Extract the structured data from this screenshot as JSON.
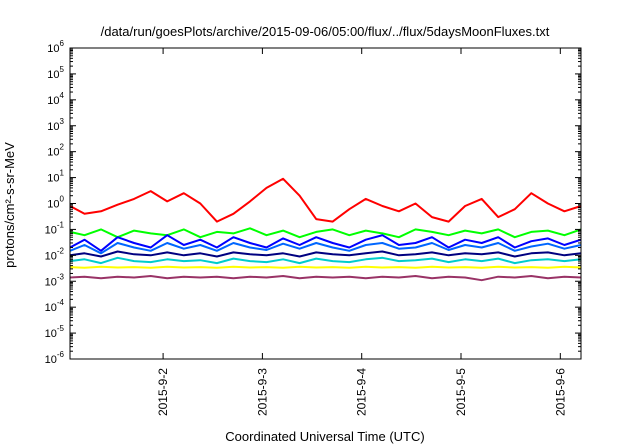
{
  "chart_data": {
    "type": "line",
    "title": "/data/run/goesPlots/archive/2015-09-06/05:00/flux/../flux/5daysMoonFluxes.txt",
    "xlabel": "Coordinated Universal Time (UTC)",
    "ylabel": "protons/cm²-s-sr-MeV",
    "yscale": "log",
    "xlim": [
      "2015-09-01T01:30",
      "2015-09-06T05:00"
    ],
    "ylim": [
      1e-06,
      1000000.0
    ],
    "x_ticks": [
      {
        "label": "2015-9-2",
        "date": "2015-09-02"
      },
      {
        "label": "2015-9-3",
        "date": "2015-09-03"
      },
      {
        "label": "2015-9-4",
        "date": "2015-09-04"
      },
      {
        "label": "2015-9-5",
        "date": "2015-09-05"
      },
      {
        "label": "2015-9-6",
        "date": "2015-09-06"
      }
    ],
    "y_ticks": [
      {
        "base": "10",
        "exp": "-6",
        "value": 1e-06
      },
      {
        "base": "10",
        "exp": "-5",
        "value": 1e-05
      },
      {
        "base": "10",
        "exp": "-4",
        "value": 0.0001
      },
      {
        "base": "10",
        "exp": "-3",
        "value": 0.001
      },
      {
        "base": "10",
        "exp": "-2",
        "value": 0.01
      },
      {
        "base": "10",
        "exp": "-1",
        "value": 0.1
      },
      {
        "base": "10",
        "exp": "0",
        "value": 1
      },
      {
        "base": "10",
        "exp": "1",
        "value": 10
      },
      {
        "base": "10",
        "exp": "2",
        "value": 100
      },
      {
        "base": "10",
        "exp": "3",
        "value": 1000
      },
      {
        "base": "10",
        "exp": "4",
        "value": 10000
      },
      {
        "base": "10",
        "exp": "5",
        "value": 100000
      },
      {
        "base": "10",
        "exp": "6",
        "value": 1000000
      }
    ],
    "grid": false,
    "legend": "none",
    "x": [
      "2015-09-01T01:30",
      "2015-09-01T05:00",
      "2015-09-01T09:00",
      "2015-09-01T13:00",
      "2015-09-01T17:00",
      "2015-09-01T21:00",
      "2015-09-02T01:00",
      "2015-09-02T05:00",
      "2015-09-02T09:00",
      "2015-09-02T13:00",
      "2015-09-02T17:00",
      "2015-09-02T21:00",
      "2015-09-03T01:00",
      "2015-09-03T05:00",
      "2015-09-03T09:00",
      "2015-09-03T13:00",
      "2015-09-03T17:00",
      "2015-09-03T21:00",
      "2015-09-04T01:00",
      "2015-09-04T05:00",
      "2015-09-04T09:00",
      "2015-09-04T13:00",
      "2015-09-04T17:00",
      "2015-09-04T21:00",
      "2015-09-05T01:00",
      "2015-09-05T05:00",
      "2015-09-05T09:00",
      "2015-09-05T13:00",
      "2015-09-05T17:00",
      "2015-09-05T21:00",
      "2015-09-06T01:00",
      "2015-09-06T05:00"
    ],
    "series": [
      {
        "color": "#ff0000",
        "values": [
          0.8,
          0.4,
          0.5,
          0.9,
          1.5,
          3.0,
          1.2,
          2.5,
          1.0,
          0.2,
          0.4,
          1.2,
          4.0,
          9.0,
          2.0,
          0.25,
          0.2,
          0.6,
          1.5,
          0.8,
          0.5,
          1.0,
          0.3,
          0.2,
          0.8,
          1.5,
          0.3,
          0.6,
          2.5,
          1.0,
          0.5,
          0.8
        ]
      },
      {
        "color": "#00ff00",
        "values": [
          0.08,
          0.06,
          0.1,
          0.05,
          0.09,
          0.07,
          0.06,
          0.1,
          0.05,
          0.08,
          0.07,
          0.11,
          0.06,
          0.09,
          0.05,
          0.08,
          0.1,
          0.06,
          0.09,
          0.07,
          0.05,
          0.1,
          0.08,
          0.06,
          0.09,
          0.07,
          0.1,
          0.05,
          0.08,
          0.09,
          0.06,
          0.1
        ]
      },
      {
        "color": "#0000ff",
        "values": [
          0.02,
          0.04,
          0.015,
          0.05,
          0.03,
          0.02,
          0.06,
          0.025,
          0.04,
          0.02,
          0.05,
          0.03,
          0.02,
          0.045,
          0.025,
          0.05,
          0.03,
          0.02,
          0.04,
          0.06,
          0.025,
          0.03,
          0.05,
          0.02,
          0.04,
          0.03,
          0.05,
          0.02,
          0.035,
          0.045,
          0.025,
          0.04
        ]
      },
      {
        "color": "#0066ff",
        "values": [
          0.015,
          0.025,
          0.012,
          0.03,
          0.02,
          0.015,
          0.03,
          0.018,
          0.025,
          0.015,
          0.03,
          0.02,
          0.016,
          0.028,
          0.018,
          0.03,
          0.02,
          0.015,
          0.025,
          0.03,
          0.018,
          0.02,
          0.03,
          0.016,
          0.025,
          0.02,
          0.03,
          0.015,
          0.022,
          0.028,
          0.018,
          0.025
        ]
      },
      {
        "color": "#000080",
        "values": [
          0.01,
          0.012,
          0.009,
          0.014,
          0.011,
          0.01,
          0.013,
          0.01,
          0.012,
          0.009,
          0.013,
          0.011,
          0.01,
          0.012,
          0.009,
          0.013,
          0.011,
          0.01,
          0.012,
          0.014,
          0.01,
          0.011,
          0.013,
          0.01,
          0.012,
          0.011,
          0.013,
          0.009,
          0.012,
          0.013,
          0.01,
          0.012
        ]
      },
      {
        "color": "#00cccc",
        "values": [
          0.006,
          0.007,
          0.005,
          0.008,
          0.006,
          0.0055,
          0.007,
          0.006,
          0.0065,
          0.005,
          0.0075,
          0.006,
          0.0055,
          0.007,
          0.005,
          0.0075,
          0.006,
          0.0055,
          0.007,
          0.008,
          0.006,
          0.0065,
          0.0075,
          0.0055,
          0.007,
          0.006,
          0.0075,
          0.005,
          0.0065,
          0.007,
          0.006,
          0.007
        ]
      },
      {
        "color": "#ffff00",
        "values": [
          0.0035,
          0.0033,
          0.0036,
          0.0034,
          0.0035,
          0.0033,
          0.0036,
          0.0034,
          0.0035,
          0.0033,
          0.0036,
          0.0034,
          0.0035,
          0.0033,
          0.0036,
          0.0034,
          0.0035,
          0.0033,
          0.0036,
          0.0034,
          0.0035,
          0.0033,
          0.0036,
          0.0034,
          0.0035,
          0.0033,
          0.0036,
          0.0034,
          0.0035,
          0.0033,
          0.0036,
          0.0034
        ]
      },
      {
        "color": "#993366",
        "values": [
          0.0014,
          0.0015,
          0.0013,
          0.0015,
          0.0014,
          0.0016,
          0.0013,
          0.0015,
          0.0014,
          0.0015,
          0.0013,
          0.0015,
          0.0014,
          0.0016,
          0.0013,
          0.0015,
          0.0014,
          0.0015,
          0.0013,
          0.0015,
          0.0014,
          0.0016,
          0.0013,
          0.0015,
          0.0014,
          0.0011,
          0.0015,
          0.0014,
          0.0016,
          0.0013,
          0.0015,
          0.0014
        ]
      }
    ]
  }
}
